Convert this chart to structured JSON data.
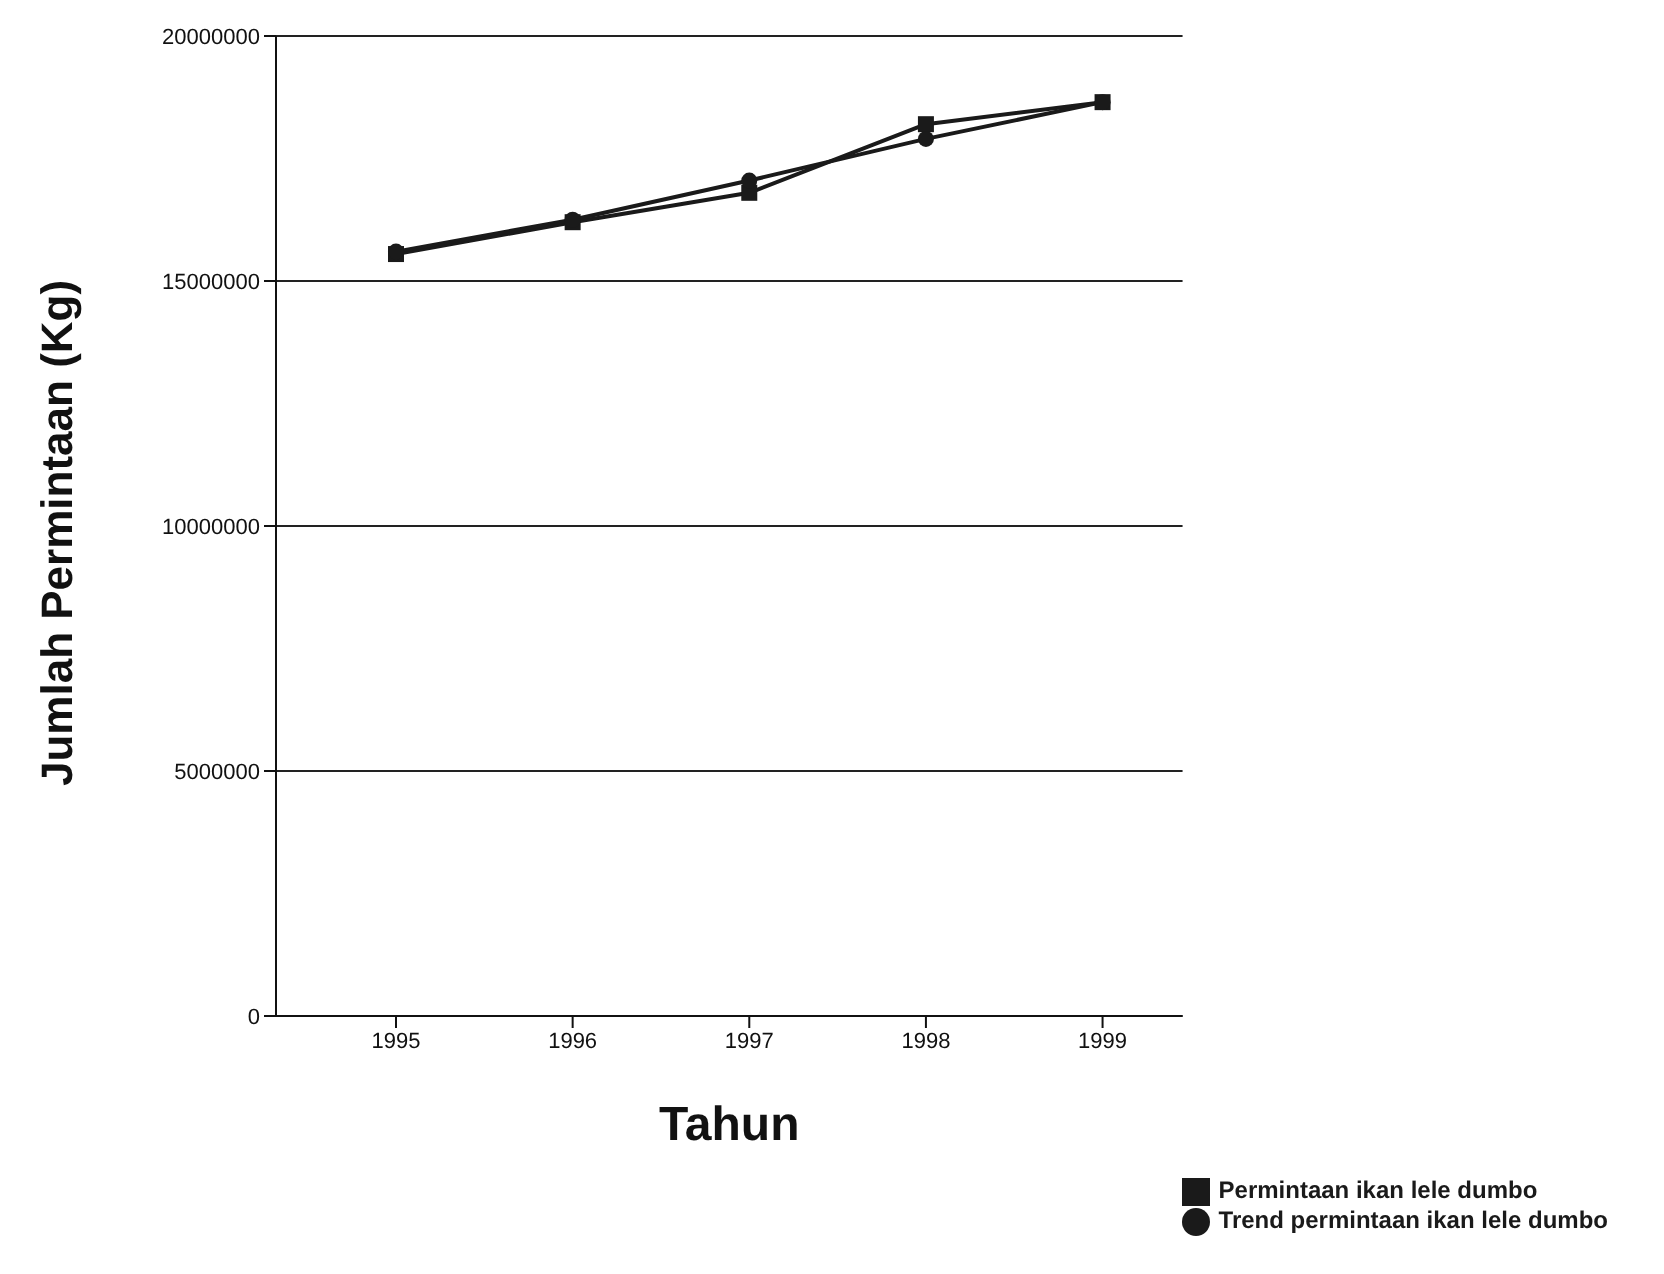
{
  "chart_data": {
    "type": "line",
    "xlabel": "Tahun",
    "ylabel": "Jumlah Permintaan (Kg)",
    "categories": [
      "1995",
      "1996",
      "1997",
      "1998",
      "1999"
    ],
    "series": [
      {
        "name": "Permintaan ikan lele dumbo",
        "color": "#1a1a1a",
        "marker": "square",
        "values": [
          15550000,
          16200000,
          16800000,
          18200000,
          18650000
        ]
      },
      {
        "name": "Trend permintaan ikan lele dumbo",
        "color": "#1a1a1a",
        "marker": "circle",
        "values": [
          15600000,
          16250000,
          17050000,
          17900000,
          18650000
        ]
      }
    ],
    "ylim": [
      0,
      20000000
    ],
    "yticks": [
      0,
      5000000,
      10000000,
      15000000,
      20000000
    ],
    "grid": "y",
    "legend": "bottom right"
  }
}
